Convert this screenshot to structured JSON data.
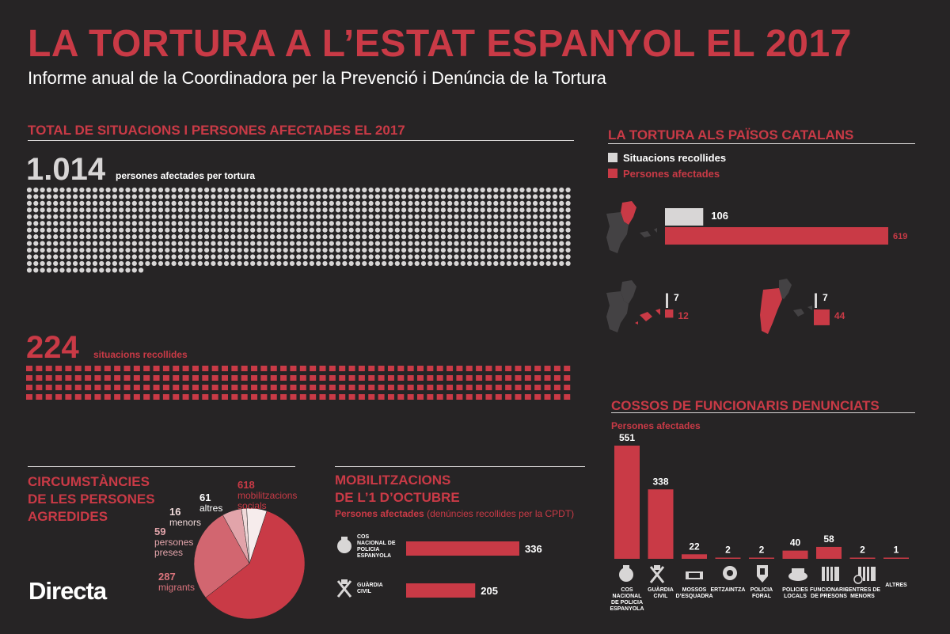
{
  "header": {
    "title": "LA TORTURA A L’ESTAT ESPANYOL EL 2017",
    "subtitle": "Informe anual de la Coordinadora per la Prevenció i Denúncia de la Tortura"
  },
  "colors": {
    "red": "#c93a46",
    "light": "#d8d6d6",
    "background": "#262425"
  },
  "total": {
    "heading": "TOTAL DE SITUACIONS I PERSONES AFECTADES EL 2017",
    "persons_number": "1.014",
    "persons_label": "persones afectades per tortura",
    "situations_number": "224",
    "situations_label": "situacions recollides"
  },
  "paisos": {
    "heading": "LA TORTURA ALS PAÏSOS CATALANS",
    "legend_situations": "Situacions recollides",
    "legend_persons": "Persones afectades"
  },
  "cossos": {
    "heading": "COSSOS DE FUNCIONARIS DENUNCIATS",
    "sublabel": "Persones afectades"
  },
  "circ": {
    "heading_line1": "CIRCUMSTÀNCIES",
    "heading_line2": "DE LES PERSONES",
    "heading_line3": "AGREDIDES"
  },
  "mob": {
    "heading_line1": "MOBILITZACIONS",
    "heading_line2": "DE L’1 D’OCTUBRE",
    "sublabel_bold": "Persones afectades",
    "sublabel_note": "(denúncies recollides per la CPDT)"
  },
  "brand": {
    "logo": "Directa"
  },
  "chart_data": [
    {
      "type": "waffle",
      "title": "TOTAL DE SITUACIONS I PERSONES AFECTADES EL 2017",
      "series": [
        {
          "name": "persones afectades per tortura",
          "value": 1014
        },
        {
          "name": "situacions recollides",
          "value": 224
        }
      ]
    },
    {
      "type": "bar",
      "title": "LA TORTURA ALS PAÏSOS CATALANS",
      "categories": [
        "Catalunya",
        "Illes Balears",
        "País Valencià"
      ],
      "series": [
        {
          "name": "Situacions recollides",
          "values": [
            106,
            7,
            7
          ]
        },
        {
          "name": "Persones afectades",
          "values": [
            619,
            12,
            44
          ]
        }
      ]
    },
    {
      "type": "bar",
      "title": "COSSOS DE FUNCIONARIS DENUNCIATS",
      "ylabel": "Persones afectades",
      "categories": [
        "COS NACIONAL DE POLICIA ESPANYOLA",
        "GUÀRDIA CIVIL",
        "MOSSOS D’ESQUADRA",
        "ERTZAINTZA",
        "POLICIA FORAL",
        "POLICIES LOCALS",
        "FUNCIONARIS DE PRESONS",
        "CENTRES DE MENORS",
        "ALTRES"
      ],
      "values": [
        551,
        338,
        22,
        2,
        2,
        40,
        58,
        2,
        1
      ]
    },
    {
      "type": "pie",
      "title": "CIRCUMSTÀNCIES DE LES PERSONES AGREDIDES",
      "slices": [
        {
          "label": "mobilitzacions socials",
          "value": 618
        },
        {
          "label": "migrants",
          "value": 287
        },
        {
          "label": "persones preses",
          "value": 59
        },
        {
          "label": "menors",
          "value": 16
        },
        {
          "label": "altres",
          "value": 61
        }
      ]
    },
    {
      "type": "bar",
      "orientation": "horizontal",
      "title": "MOBILITZACIONS DE L’1 D’OCTUBRE",
      "categories": [
        "COS NACIONAL DE POLICIA ESPANYOLA",
        "GUÀRDIA CIVIL"
      ],
      "values": [
        336,
        205
      ]
    }
  ]
}
